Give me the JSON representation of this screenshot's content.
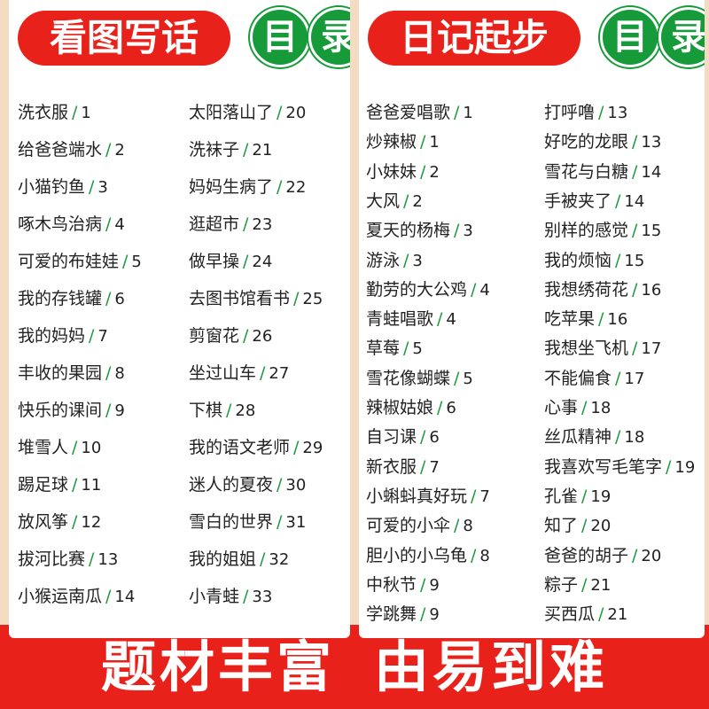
{
  "separator": "/",
  "pages": [
    {
      "title": "看图写话",
      "badge": [
        "目",
        "录"
      ],
      "columns": [
        [
          {
            "title": "洗衣服",
            "page": 1
          },
          {
            "title": "给爸爸端水",
            "page": 2
          },
          {
            "title": "小猫钓鱼",
            "page": 3
          },
          {
            "title": "啄木鸟治病",
            "page": 4
          },
          {
            "title": "可爱的布娃娃",
            "page": 5
          },
          {
            "title": "我的存钱罐",
            "page": 6
          },
          {
            "title": "我的妈妈",
            "page": 7
          },
          {
            "title": "丰收的果园",
            "page": 8
          },
          {
            "title": "快乐的课间",
            "page": 9
          },
          {
            "title": "堆雪人",
            "page": 10
          },
          {
            "title": "踢足球",
            "page": 11
          },
          {
            "title": "放风筝",
            "page": 12
          },
          {
            "title": "拔河比赛",
            "page": 13
          },
          {
            "title": "小猴运南瓜",
            "page": 14
          }
        ],
        [
          {
            "title": "太阳落山了",
            "page": 20
          },
          {
            "title": "洗袜子",
            "page": 21
          },
          {
            "title": "妈妈生病了",
            "page": 22
          },
          {
            "title": "逛超市",
            "page": 23
          },
          {
            "title": "做早操",
            "page": 24
          },
          {
            "title": "去图书馆看书",
            "page": 25
          },
          {
            "title": "剪窗花",
            "page": 26
          },
          {
            "title": "坐过山车",
            "page": 27
          },
          {
            "title": "下棋",
            "page": 28
          },
          {
            "title": "我的语文老师",
            "page": 29
          },
          {
            "title": "迷人的夏夜",
            "page": 30
          },
          {
            "title": "雪白的世界",
            "page": 31
          },
          {
            "title": "我的姐姐",
            "page": 32
          },
          {
            "title": "小青蛙",
            "page": 33
          }
        ]
      ]
    },
    {
      "title": "日记起步",
      "badge": [
        "目",
        "录"
      ],
      "columns": [
        [
          {
            "title": "爸爸爱唱歌",
            "page": 1
          },
          {
            "title": "炒辣椒",
            "page": 1
          },
          {
            "title": "小妹妹",
            "page": 2
          },
          {
            "title": "大风",
            "page": 2
          },
          {
            "title": "夏天的杨梅",
            "page": 3
          },
          {
            "title": "游泳",
            "page": 3
          },
          {
            "title": "勤劳的大公鸡",
            "page": 4
          },
          {
            "title": "青蛙唱歌",
            "page": 4
          },
          {
            "title": "草莓",
            "page": 5
          },
          {
            "title": "雪花像蝴蝶",
            "page": 5
          },
          {
            "title": "辣椒姑娘",
            "page": 6
          },
          {
            "title": "自习课",
            "page": 6
          },
          {
            "title": "新衣服",
            "page": 7
          },
          {
            "title": "小蝌蚪真好玩",
            "page": 7
          },
          {
            "title": "可爱的小伞",
            "page": 8
          },
          {
            "title": "胆小的小乌龟",
            "page": 8
          },
          {
            "title": "中秋节",
            "page": 9
          },
          {
            "title": "学跳舞",
            "page": 9
          }
        ],
        [
          {
            "title": "打呼噜",
            "page": 13
          },
          {
            "title": "好吃的龙眼",
            "page": 13
          },
          {
            "title": "雪花与白糖",
            "page": 14
          },
          {
            "title": "手被夹了",
            "page": 14
          },
          {
            "title": "别样的感觉",
            "page": 15
          },
          {
            "title": "我的烦恼",
            "page": 15
          },
          {
            "title": "我想绣荷花",
            "page": 16
          },
          {
            "title": "吃苹果",
            "page": 16
          },
          {
            "title": "我想坐飞机",
            "page": 17
          },
          {
            "title": "不能偏食",
            "page": 17
          },
          {
            "title": "心事",
            "page": 18
          },
          {
            "title": "丝瓜精神",
            "page": 18
          },
          {
            "title": "我喜欢写毛笔字",
            "page": 19
          },
          {
            "title": "孔雀",
            "page": 19
          },
          {
            "title": "知了",
            "page": 20
          },
          {
            "title": "爸爸的胡子",
            "page": 20
          },
          {
            "title": "粽子",
            "page": 21
          },
          {
            "title": "买西瓜",
            "page": 21
          }
        ]
      ]
    }
  ],
  "banner": [
    "题材丰富",
    "由易到难"
  ]
}
